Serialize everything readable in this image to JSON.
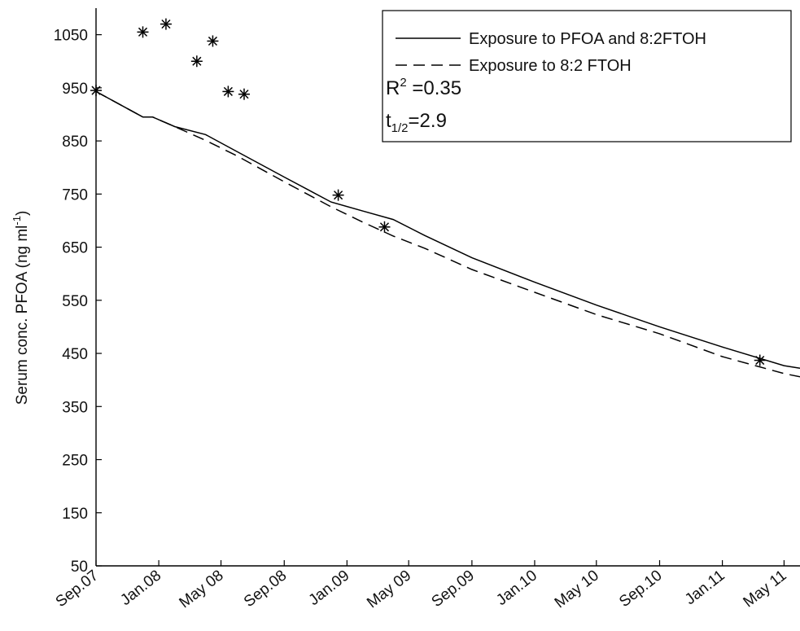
{
  "chart_data": {
    "type": "line",
    "title": "",
    "xlabel": "",
    "ylabel": "Serum conc. PFOA (ng ml-1)",
    "ylabel_main": "Serum conc. PFOA (ng ml",
    "ylabel_sup": "-1",
    "ylabel_end": ")",
    "x_start": "2007-09-01",
    "x_end": "2011-06-01",
    "ylim": [
      50,
      1100
    ],
    "xticks": [
      {
        "date": "2007-09-01",
        "label": "Sep.07"
      },
      {
        "date": "2008-01-01",
        "label": "Jan.08"
      },
      {
        "date": "2008-05-01",
        "label": "May 08"
      },
      {
        "date": "2008-09-01",
        "label": "Sep.08"
      },
      {
        "date": "2009-01-01",
        "label": "Jan.09"
      },
      {
        "date": "2009-05-01",
        "label": "May 09"
      },
      {
        "date": "2009-09-01",
        "label": "Sep.09"
      },
      {
        "date": "2010-01-01",
        "label": "Jan.10"
      },
      {
        "date": "2010-05-01",
        "label": "May 10"
      },
      {
        "date": "2010-09-01",
        "label": "Sep.10"
      },
      {
        "date": "2011-01-01",
        "label": "Jan.11"
      },
      {
        "date": "2011-05-01",
        "label": "May 11"
      }
    ],
    "yticks": [
      50,
      150,
      250,
      350,
      450,
      550,
      650,
      750,
      850,
      950,
      1050
    ],
    "grid": false,
    "legend_position": "top-right",
    "series": [
      {
        "name": "Exposure to PFOA and 8:2FTOH",
        "style": "solid",
        "color": "#000000",
        "points": [
          [
            "2007-09-01",
            943
          ],
          [
            "2007-12-01",
            895
          ],
          [
            "2007-12-20",
            895
          ],
          [
            "2008-02-01",
            877
          ],
          [
            "2008-04-01",
            862
          ],
          [
            "2008-06-01",
            830
          ],
          [
            "2008-09-01",
            782
          ],
          [
            "2008-12-01",
            735
          ],
          [
            "2009-02-01",
            718
          ],
          [
            "2009-04-01",
            702
          ],
          [
            "2009-06-01",
            672
          ],
          [
            "2009-09-01",
            630
          ],
          [
            "2010-01-01",
            584
          ],
          [
            "2010-05-01",
            541
          ],
          [
            "2010-09-01",
            500
          ],
          [
            "2011-01-01",
            462
          ],
          [
            "2011-05-01",
            427
          ],
          [
            "2011-06-01",
            422
          ]
        ]
      },
      {
        "name": "Exposure to 8:2 FTOH",
        "style": "dashed",
        "color": "#000000",
        "points": [
          [
            "2007-09-01",
            943
          ],
          [
            "2007-12-01",
            895
          ],
          [
            "2007-12-20",
            895
          ],
          [
            "2008-02-01",
            877
          ],
          [
            "2008-04-01",
            851
          ],
          [
            "2008-06-01",
            822
          ],
          [
            "2008-09-01",
            773
          ],
          [
            "2008-12-01",
            726
          ],
          [
            "2009-02-01",
            697
          ],
          [
            "2009-04-01",
            671
          ],
          [
            "2009-06-01",
            648
          ],
          [
            "2009-09-01",
            608
          ],
          [
            "2010-01-01",
            565
          ],
          [
            "2010-05-01",
            523
          ],
          [
            "2010-09-01",
            487
          ],
          [
            "2011-01-01",
            444
          ],
          [
            "2011-05-01",
            412
          ],
          [
            "2011-06-01",
            406
          ]
        ]
      }
    ],
    "observed": [
      [
        "2007-09-01",
        945
      ],
      [
        "2007-12-01",
        1055
      ],
      [
        "2008-01-15",
        1070
      ],
      [
        "2008-03-15",
        1000
      ],
      [
        "2008-04-15",
        1038
      ],
      [
        "2008-05-15",
        943
      ],
      [
        "2008-06-15",
        938
      ],
      [
        "2008-12-15",
        748
      ],
      [
        "2009-03-15",
        688
      ],
      [
        "2011-03-15",
        437
      ]
    ],
    "annotations": {
      "r2_label": "R",
      "r2_sup": "2",
      "r2_value": " =0.35",
      "half_life_label": "t",
      "half_life_sub": "1/2",
      "half_life_value": "=2.9"
    }
  }
}
